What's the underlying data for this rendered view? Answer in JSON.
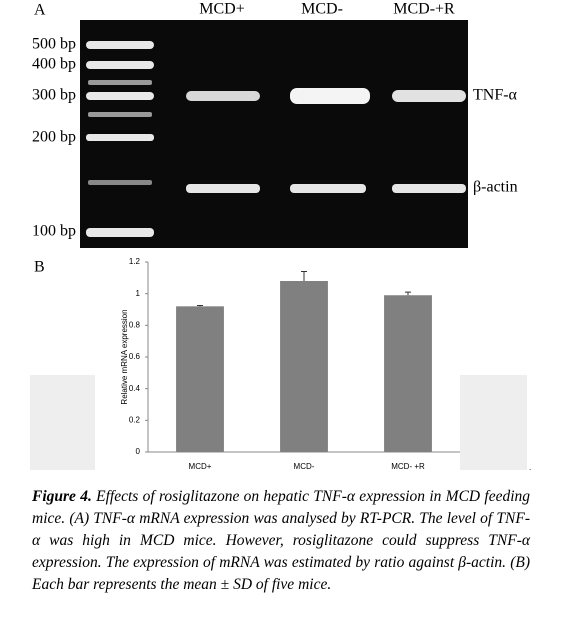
{
  "panel_a": {
    "label": "A",
    "lanes": [
      "MCD+",
      "MCD-",
      "MCD-+R"
    ],
    "ladder": [
      "500 bp",
      "400 bp",
      "300 bp",
      "200 bp",
      "100 bp"
    ],
    "bands": [
      "TNF-α",
      "β-actin"
    ]
  },
  "panel_b": {
    "label": "B"
  },
  "chart_data": {
    "type": "bar",
    "y_label": "Relative mRNA expression",
    "categories": [
      "MCD+",
      "MCD-",
      "MCD- +R"
    ],
    "values": [
      0.92,
      1.08,
      0.99
    ],
    "errors": [
      0.005,
      0.06,
      0.02
    ],
    "color": "#808080",
    "ylim": [
      0,
      1.2
    ],
    "yticks": [
      0,
      0.2,
      0.4,
      0.6,
      0.8,
      1,
      1.2
    ]
  },
  "caption": {
    "label": "Figure 4.",
    "text": "Effects of rosiglitazone on hepatic TNF-α expression in MCD feeding mice. (A) TNF-α mRNA expression was analysed by RT-PCR. The level of TNF-α was high in MCD mice. However, rosiglitazone could suppress TNF-α expression. The expression of mRNA was estimated by ratio against β-actin. (B) Each bar represents the mean ± SD of five mice."
  }
}
